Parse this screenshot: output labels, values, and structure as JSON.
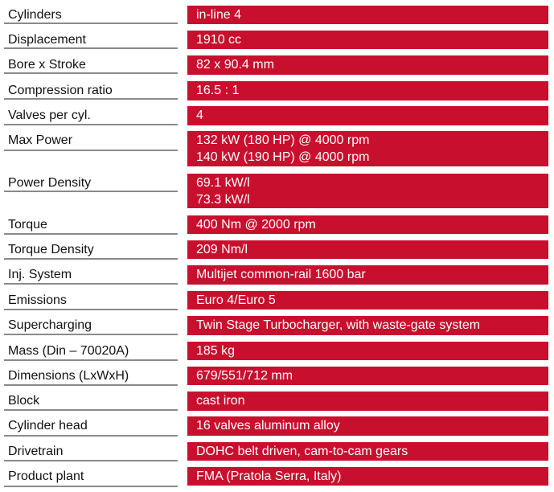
{
  "specs": [
    {
      "label": "Cylinders",
      "values": [
        "in-line 4"
      ]
    },
    {
      "label": "Displacement",
      "values": [
        "1910 cc"
      ]
    },
    {
      "label": "Bore x Stroke",
      "values": [
        "82 x 90.4 mm"
      ]
    },
    {
      "label": "Compression ratio",
      "values": [
        "16.5 : 1"
      ]
    },
    {
      "label": "Valves per cyl.",
      "values": [
        "4"
      ]
    },
    {
      "label": "Max Power",
      "values": [
        "132 kW (180 HP) @ 4000 rpm",
        "140 kW (190 HP) @ 4000 rpm"
      ]
    },
    {
      "label": "Power Density",
      "values": [
        "69.1 kW/l",
        "73.3 kW/l"
      ]
    },
    {
      "label": "Torque",
      "values": [
        "400 Nm @ 2000 rpm"
      ]
    },
    {
      "label": "Torque Density",
      "values": [
        "209 Nm/l"
      ]
    },
    {
      "label": "Inj. System",
      "values": [
        "Multijet common-rail 1600 bar"
      ]
    },
    {
      "label": "Emissions",
      "values": [
        "Euro 4/Euro 5"
      ]
    },
    {
      "label": "Supercharging",
      "values": [
        "Twin Stage Turbocharger, with waste-gate system"
      ]
    },
    {
      "label": "Mass (Din – 70020A)",
      "values": [
        "185 kg"
      ]
    },
    {
      "label": "Dimensions (LxWxH)",
      "values": [
        "679/551/712 mm"
      ]
    },
    {
      "label": "Block",
      "values": [
        "cast iron"
      ]
    },
    {
      "label": "Cylinder head",
      "values": [
        "16 valves aluminum alloy"
      ]
    },
    {
      "label": "Drivetrain",
      "values": [
        "DOHC belt driven, cam-to-cam gears"
      ]
    },
    {
      "label": "Product plant",
      "values": [
        "FMA (Pratola Serra, Italy)"
      ]
    }
  ]
}
